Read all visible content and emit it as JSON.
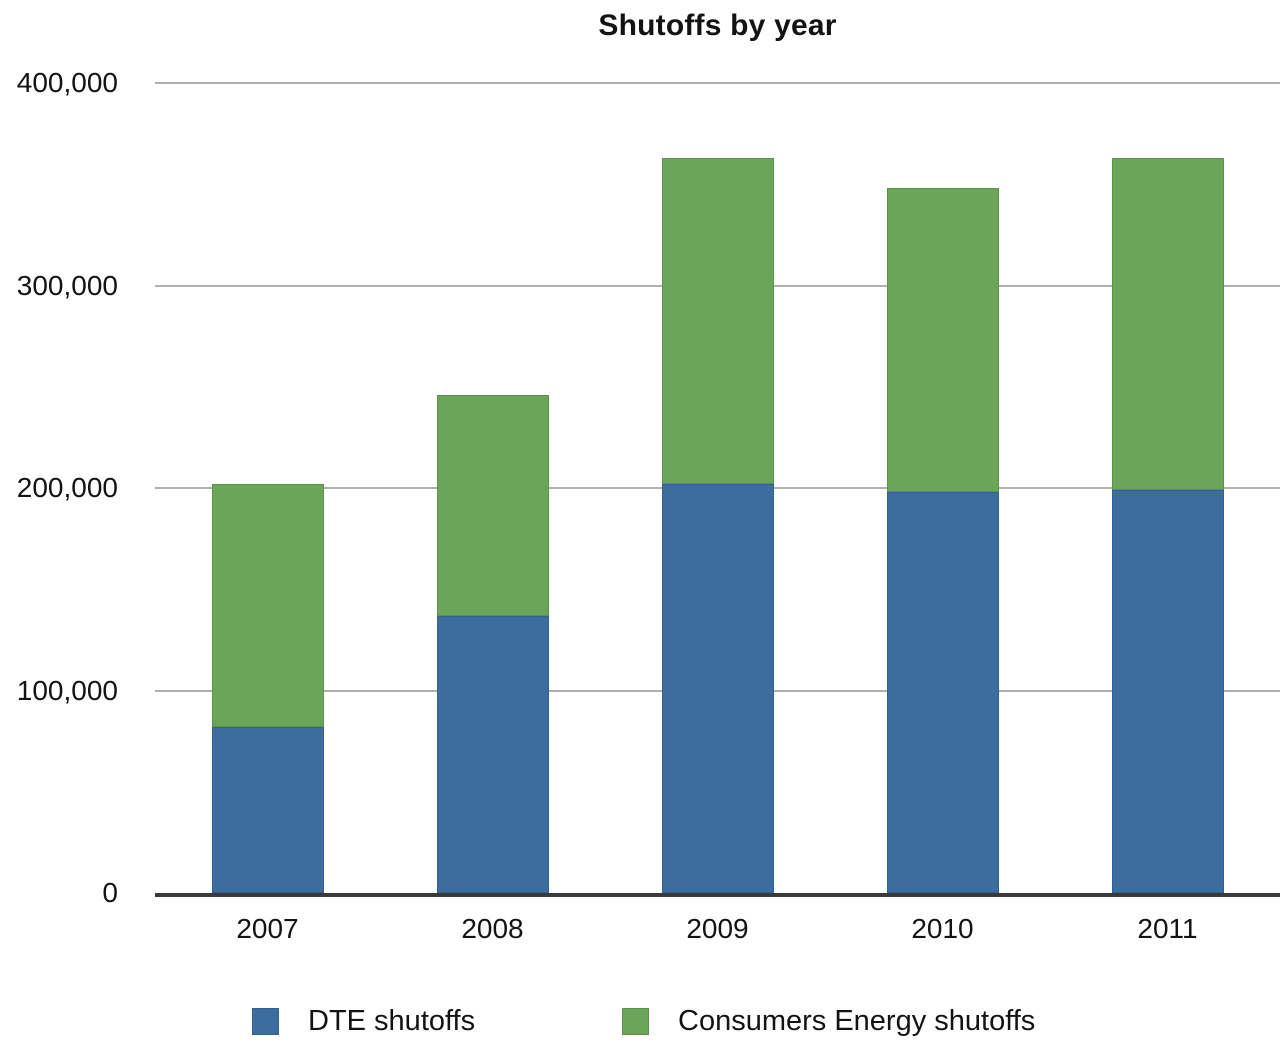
{
  "chart_data": {
    "type": "bar",
    "stacked": true,
    "title": "Shutoffs by year",
    "categories": [
      "2007",
      "2008",
      "2009",
      "2010",
      "2011"
    ],
    "series": [
      {
        "name": "DTE shutoffs",
        "color": "#3d6c9e",
        "border_color": "#33608e",
        "values": [
          82000,
          137000,
          202000,
          198000,
          199000
        ]
      },
      {
        "name": "Consumers Energy shutoffs",
        "color": "#6ba55a",
        "border_color": "#5c934b",
        "values": [
          120000,
          109000,
          161000,
          150000,
          164000
        ]
      }
    ],
    "xlabel": "",
    "ylabel": "",
    "ylim": [
      0,
      400000
    ],
    "y_ticks": [
      {
        "label": "0",
        "value": 0
      },
      {
        "label": "100,000",
        "value": 100000
      },
      {
        "label": "200,000",
        "value": 200000
      },
      {
        "label": "300,000",
        "value": 300000
      },
      {
        "label": "400,000",
        "value": 400000
      }
    ],
    "grid": "horizontal",
    "legend_position": "bottom",
    "gridline_color": "#b0b0b0",
    "axis_line_color": "#3a3a3a",
    "text_color": "#131313",
    "background_color": "#ffffff"
  }
}
